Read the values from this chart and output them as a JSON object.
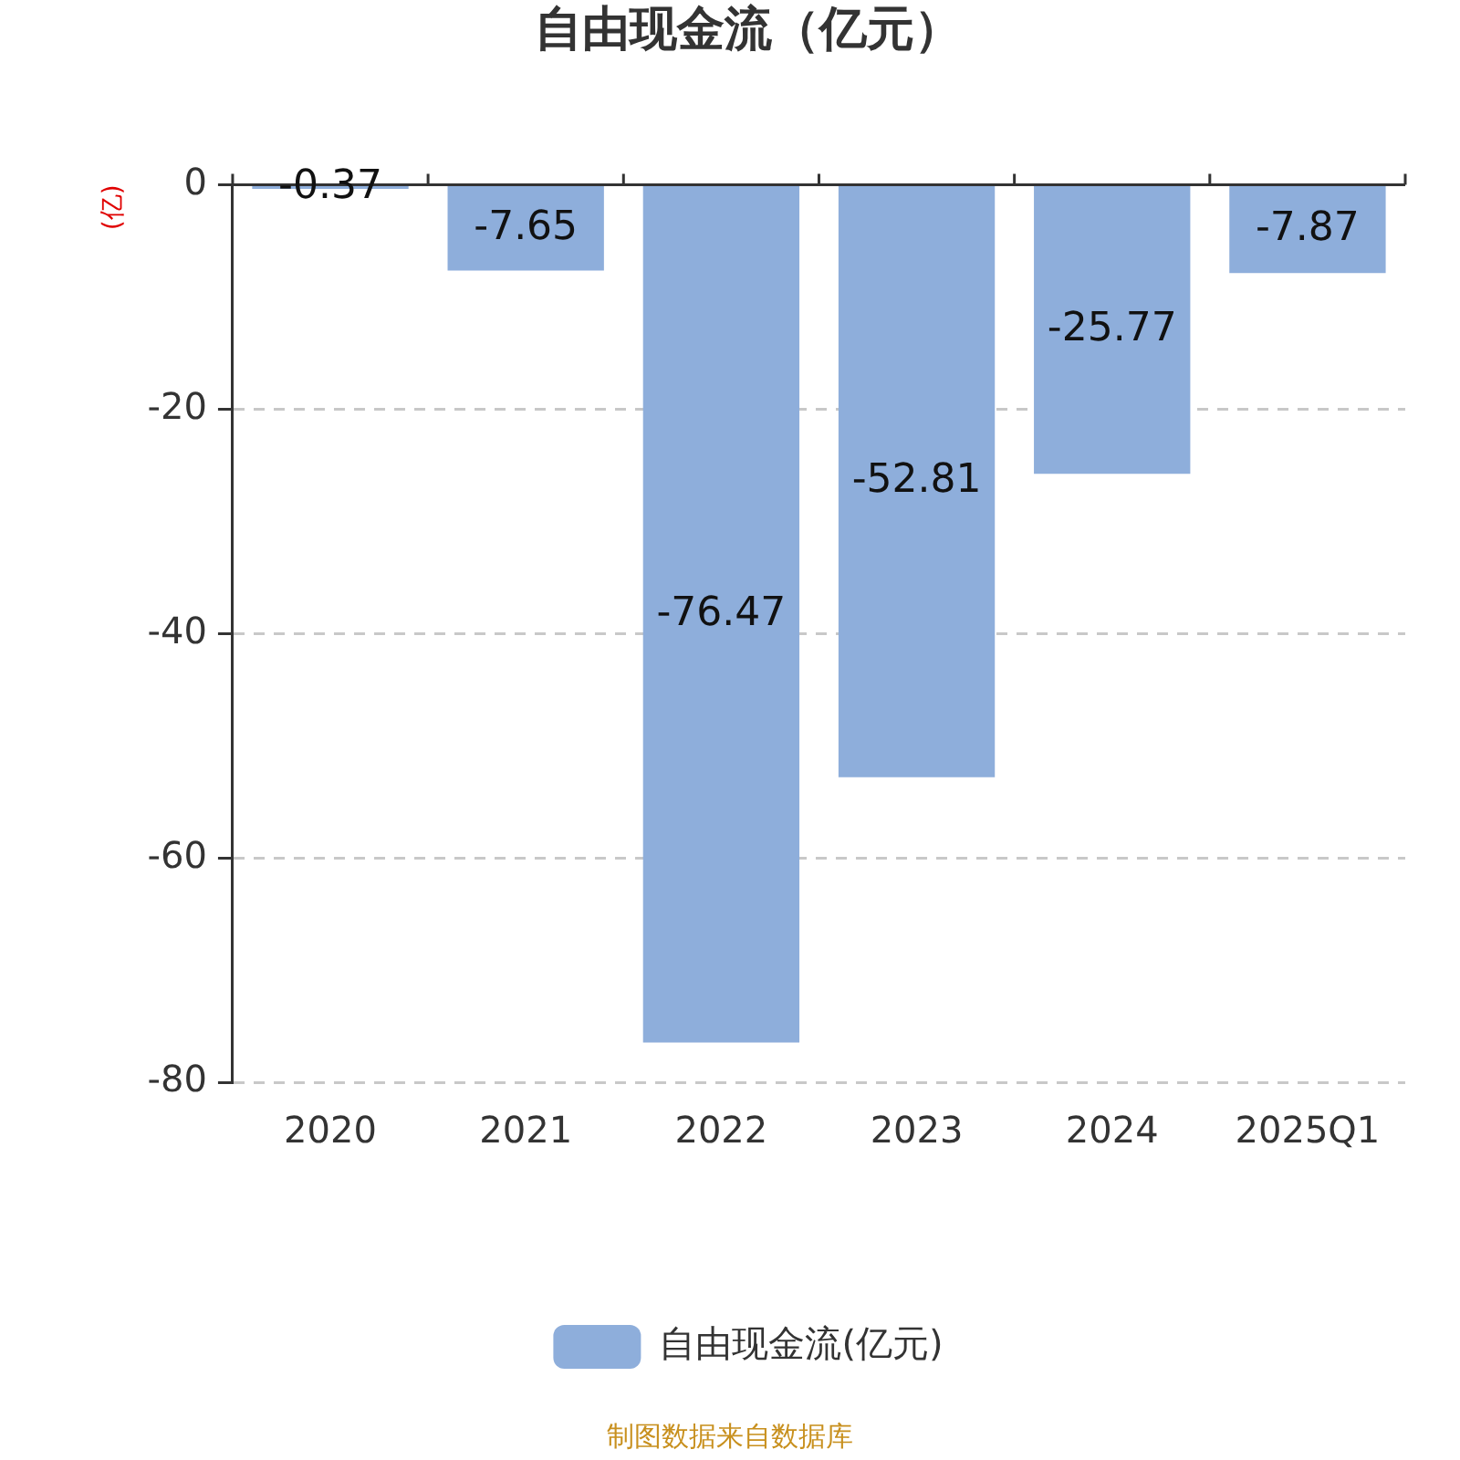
{
  "chart_data": {
    "type": "bar",
    "title": "自由现金流（亿元）",
    "ylabel": "(亿)",
    "categories": [
      "2020",
      "2021",
      "2022",
      "2023",
      "2024",
      "2025Q1"
    ],
    "series": [
      {
        "name": "自由现金流(亿元)",
        "color": "#8eaedb",
        "values": [
          -0.37,
          -7.65,
          -76.47,
          -52.81,
          -25.77,
          -7.87
        ]
      }
    ],
    "ylim": [
      -80,
      0
    ],
    "yticks": [
      -80,
      -60,
      -40,
      -20,
      0
    ],
    "grid": "y",
    "legend": "bottom",
    "data_labels": true,
    "annotations": [
      "制图数据来自数据库"
    ]
  }
}
